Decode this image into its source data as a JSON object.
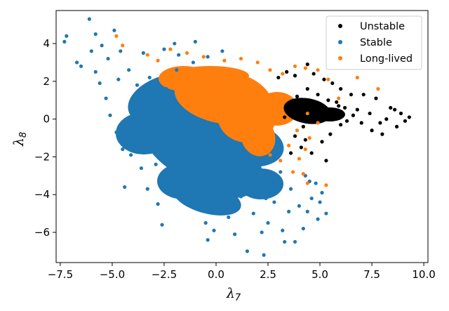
{
  "chart_data": {
    "type": "scatter",
    "title": "",
    "xlabel": {
      "symbol": "λ",
      "subscript": "7"
    },
    "ylabel": {
      "symbol": "λ",
      "subscript": "8"
    },
    "xlim": [
      -7.7,
      10.2
    ],
    "ylim": [
      -7.6,
      5.75
    ],
    "x_ticks": [
      -7.5,
      -5.0,
      -2.5,
      0.0,
      2.5,
      5.0,
      7.5,
      10.0
    ],
    "x_tick_labels": [
      "−7.5",
      "−5.0",
      "−2.5",
      "0.0",
      "2.5",
      "5.0",
      "7.5",
      "10.0"
    ],
    "y_ticks": [
      4,
      2,
      0,
      -2,
      -4,
      -6
    ],
    "y_tick_labels": [
      "4",
      "2",
      "0",
      "−2",
      "−4",
      "−6"
    ],
    "grid": false,
    "legend_position": "top-right",
    "series": [
      {
        "name": "Stable",
        "color": "#1f77b4",
        "points": [
          [
            -7.2,
            4.4
          ],
          [
            -7.3,
            4.1
          ],
          [
            -6.7,
            3.0
          ],
          [
            -6.5,
            2.8
          ],
          [
            -6.1,
            5.3
          ],
          [
            -5.8,
            4.5
          ],
          [
            -5.5,
            3.9
          ],
          [
            -5.8,
            2.5
          ],
          [
            -5.2,
            3.2
          ],
          [
            -4.9,
            4.7
          ],
          [
            -4.6,
            3.6
          ],
          [
            -4.2,
            2.6
          ],
          [
            -5.3,
            1.1
          ],
          [
            -5.1,
            0.2
          ],
          [
            -4.8,
            -0.7
          ],
          [
            -4.5,
            -1.6
          ],
          [
            -4.4,
            -3.6
          ],
          [
            -4.0,
            -0.9
          ],
          [
            -3.8,
            1.8
          ],
          [
            -3.5,
            3.5
          ],
          [
            -3.2,
            2.2
          ],
          [
            -3.0,
            0.6
          ],
          [
            -3.4,
            -1.4
          ],
          [
            -2.9,
            -2.4
          ],
          [
            -2.6,
            -5.6
          ],
          [
            -2.2,
            -3.2
          ],
          [
            -2.5,
            3.7
          ],
          [
            -1.8,
            3.4
          ],
          [
            -1.2,
            -2.8
          ],
          [
            -0.8,
            -4.0
          ],
          [
            -0.5,
            -5.5
          ],
          [
            -0.4,
            -6.4
          ],
          [
            0.1,
            -4.6
          ],
          [
            0.3,
            -3.2
          ],
          [
            0.6,
            -5.2
          ],
          [
            0.9,
            -6.1
          ],
          [
            1.2,
            -4.1
          ],
          [
            1.5,
            -7.0
          ],
          [
            1.8,
            -5.0
          ],
          [
            2.2,
            -6.0
          ],
          [
            2.3,
            -7.2
          ],
          [
            2.5,
            -5.5
          ],
          [
            2.8,
            -4.4
          ],
          [
            3.2,
            -5.9
          ],
          [
            3.5,
            -4.9
          ],
          [
            3.8,
            -6.5
          ],
          [
            4.0,
            -4.6
          ],
          [
            4.2,
            -5.8
          ],
          [
            4.4,
            -4.9
          ],
          [
            4.6,
            -4.2
          ],
          [
            4.9,
            -5.3
          ],
          [
            5.1,
            -3.9
          ],
          [
            5.3,
            -5.0
          ],
          [
            4.8,
            -3.4
          ],
          [
            4.3,
            -3.0
          ],
          [
            3.6,
            -3.7
          ],
          [
            3.1,
            -2.8
          ],
          [
            2.7,
            -3.3
          ],
          [
            2.4,
            -4.2
          ],
          [
            2.0,
            -3.6
          ],
          [
            1.6,
            -3.0
          ],
          [
            1.1,
            -3.4
          ],
          [
            0.7,
            -2.6
          ],
          [
            0.2,
            -2.2
          ],
          [
            -0.3,
            -2.9
          ],
          [
            -0.9,
            -3.1
          ],
          [
            -1.5,
            -1.8
          ],
          [
            -2.1,
            -1.0
          ],
          [
            -2.7,
            -0.2
          ],
          [
            -2.4,
            1.6
          ],
          [
            -1.9,
            2.6
          ],
          [
            -1.1,
            3.0
          ],
          [
            -0.4,
            3.3
          ],
          [
            0.3,
            3.6
          ],
          [
            -1.6,
            -4.3
          ],
          [
            -1.9,
            -3.9
          ],
          [
            -0.1,
            -5.9
          ],
          [
            3.3,
            -6.5
          ],
          [
            4.5,
            -3.3
          ],
          [
            5.0,
            -4.4
          ],
          [
            -3.6,
            -2.6
          ],
          [
            -4.1,
            -1.9
          ],
          [
            -3.9,
            0.4
          ],
          [
            -2.0,
            4.0
          ],
          [
            -1.0,
            4.1
          ],
          [
            -5.6,
            1.9
          ],
          [
            -6.0,
            3.6
          ],
          [
            -4.7,
            2.1
          ],
          [
            -3.3,
            -3.7
          ],
          [
            -2.8,
            -4.5
          ]
        ]
      },
      {
        "name": "Long-lived",
        "color": "#ff7f0e",
        "points": [
          [
            -4.8,
            4.4
          ],
          [
            -4.5,
            3.9
          ],
          [
            -3.3,
            3.4
          ],
          [
            -2.8,
            3.1
          ],
          [
            -2.2,
            3.7
          ],
          [
            -1.4,
            3.5
          ],
          [
            -0.6,
            3.3
          ],
          [
            0.4,
            3.1
          ],
          [
            1.2,
            3.2
          ],
          [
            2.0,
            3.0
          ],
          [
            2.6,
            2.6
          ],
          [
            3.2,
            2.4
          ],
          [
            3.8,
            2.8
          ],
          [
            4.3,
            2.7
          ],
          [
            4.9,
            2.6
          ],
          [
            5.4,
            2.1
          ],
          [
            6.8,
            2.2
          ],
          [
            7.8,
            1.6
          ],
          [
            5.9,
            1.1
          ],
          [
            4.9,
            -0.2
          ],
          [
            4.5,
            -1.0
          ],
          [
            4.3,
            -1.6
          ],
          [
            4.0,
            -2.1
          ],
          [
            4.2,
            -2.9
          ],
          [
            4.4,
            -3.4
          ],
          [
            5.3,
            -3.5
          ],
          [
            3.7,
            -2.8
          ],
          [
            3.1,
            -2.2
          ],
          [
            2.6,
            -1.9
          ],
          [
            2.1,
            -1.6
          ],
          [
            1.6,
            -1.2
          ],
          [
            3.5,
            -1.4
          ],
          [
            3.9,
            -0.6
          ],
          [
            4.4,
            0.3
          ],
          [
            -2.6,
            2.2
          ],
          [
            -1.7,
            2.0
          ]
        ]
      },
      {
        "name": "Unstable",
        "color": "#000000",
        "points": [
          [
            3.0,
            2.2
          ],
          [
            3.4,
            2.5
          ],
          [
            3.8,
            2.3
          ],
          [
            4.4,
            2.9
          ],
          [
            4.7,
            2.4
          ],
          [
            5.2,
            2.1
          ],
          [
            5.6,
            1.9
          ],
          [
            6.0,
            1.6
          ],
          [
            6.5,
            1.3
          ],
          [
            7.1,
            1.3
          ],
          [
            7.7,
            1.1
          ],
          [
            8.4,
            0.6
          ],
          [
            8.9,
            0.3
          ],
          [
            9.3,
            0.1
          ],
          [
            9.1,
            -0.1
          ],
          [
            8.7,
            -0.4
          ],
          [
            8.0,
            -0.8
          ],
          [
            7.5,
            -0.6
          ],
          [
            7.0,
            -0.2
          ],
          [
            6.6,
            0.2
          ],
          [
            6.2,
            0.6
          ],
          [
            5.8,
            0.9
          ],
          [
            5.4,
            1.0
          ],
          [
            5.0,
            0.5
          ],
          [
            4.6,
            0.1
          ],
          [
            4.2,
            -0.4
          ],
          [
            3.8,
            -0.9
          ],
          [
            4.1,
            -1.5
          ],
          [
            4.6,
            -1.8
          ],
          [
            5.1,
            -1.2
          ],
          [
            5.5,
            -0.8
          ],
          [
            6.0,
            -0.3
          ],
          [
            4.9,
            1.3
          ],
          [
            4.4,
            1.6
          ],
          [
            3.9,
            1.2
          ],
          [
            3.5,
            0.7
          ],
          [
            3.3,
            0.1
          ],
          [
            4.0,
            0.4
          ],
          [
            4.8,
            0.9
          ],
          [
            5.7,
            0.3
          ],
          [
            6.3,
            -0.1
          ],
          [
            6.8,
            0.5
          ],
          [
            7.4,
            0.3
          ],
          [
            8.2,
            0.0
          ],
          [
            5.3,
            -2.2
          ],
          [
            4.3,
            -1.1
          ],
          [
            3.6,
            -1.8
          ],
          [
            5.9,
            0.7
          ],
          [
            7.9,
            -0.2
          ],
          [
            8.6,
            0.5
          ]
        ]
      }
    ]
  }
}
